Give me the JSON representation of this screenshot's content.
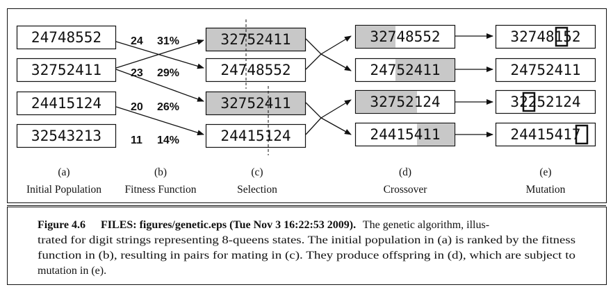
{
  "columns": {
    "initial": [
      "24748552",
      "32752411",
      "24415124",
      "32543213"
    ],
    "fitness": [
      {
        "score": "24",
        "pct": "31%"
      },
      {
        "score": "23",
        "pct": "29%"
      },
      {
        "score": "20",
        "pct": "26%"
      },
      {
        "score": "11",
        "pct": "14%"
      }
    ],
    "selection": [
      "32752411",
      "24748552",
      "32752411",
      "24415124"
    ],
    "crossover": [
      "32748552",
      "24752411",
      "32752124",
      "24415411"
    ],
    "mutation": [
      "32748152",
      "24752411",
      "32252124",
      "24415417"
    ]
  },
  "labels": {
    "a": {
      "letter": "(a)",
      "name": "Initial Population"
    },
    "b": {
      "letter": "(b)",
      "name": "Fitness Function"
    },
    "c": {
      "letter": "(c)",
      "name": "Selection"
    },
    "d": {
      "letter": "(d)",
      "name": "Crossover"
    },
    "e": {
      "letter": "(e)",
      "name": "Mutation"
    }
  },
  "caption": {
    "figure": "Figure 4.6",
    "files": "FILES: figures/genetic.eps (Tue Nov 3 16:22:53 2009).",
    "line1": "The genetic algorithm, illus-",
    "line2": "trated for digit strings representing 8-queens states. The initial population in (a) is ranked by the fitness",
    "line3": "function in (b), resulting in pairs for mating in (c). They produce offspring in (d), which are subject to",
    "line4": "mutation in (e)."
  },
  "colors": {
    "shade": "#c8c8c8",
    "ink": "#111111"
  }
}
